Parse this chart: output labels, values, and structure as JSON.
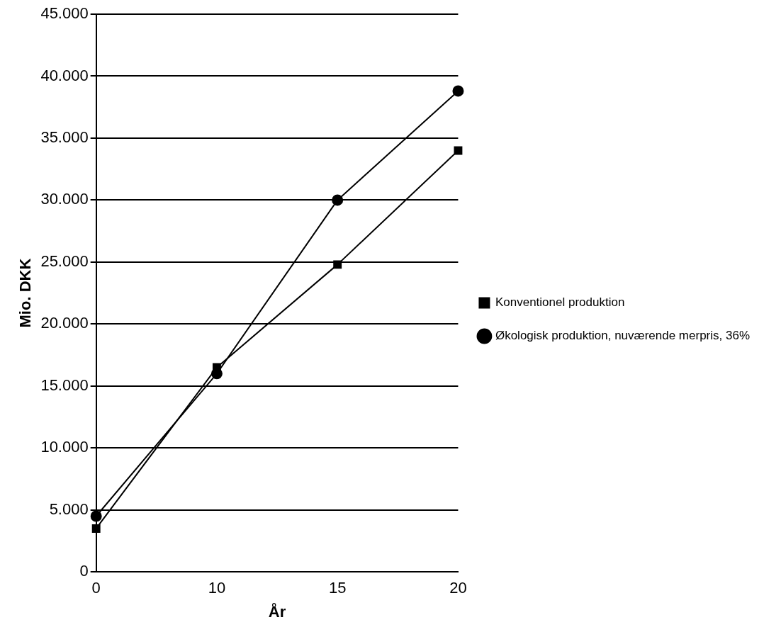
{
  "chart_data": {
    "type": "line",
    "xlabel": "År",
    "ylabel": "Mio. DKK",
    "categories": [
      "0",
      "10",
      "15",
      "20"
    ],
    "series": [
      {
        "name": "Konventionel produktion",
        "color": "#000000",
        "marker": "square",
        "values": [
          3500,
          16500,
          24800,
          34000
        ]
      },
      {
        "name": "Økologisk produktion, nuværende merpris, 36%",
        "color": "#000000",
        "marker": "circle",
        "values": [
          4500,
          16000,
          30000,
          38800
        ]
      }
    ],
    "ylim": [
      0,
      45000
    ],
    "yticks": [
      {
        "value": 0,
        "label": "0"
      },
      {
        "value": 5000,
        "label": "5.000"
      },
      {
        "value": 10000,
        "label": "10.000"
      },
      {
        "value": 15000,
        "label": "15.000"
      },
      {
        "value": 20000,
        "label": "20.000"
      },
      {
        "value": 25000,
        "label": "25.000"
      },
      {
        "value": 30000,
        "label": "30.000"
      },
      {
        "value": 35000,
        "label": "35.000"
      },
      {
        "value": 40000,
        "label": "40.000"
      },
      {
        "value": 45000,
        "label": "45.000"
      }
    ],
    "grid": "y",
    "legend": "right",
    "line_style": "solid"
  }
}
